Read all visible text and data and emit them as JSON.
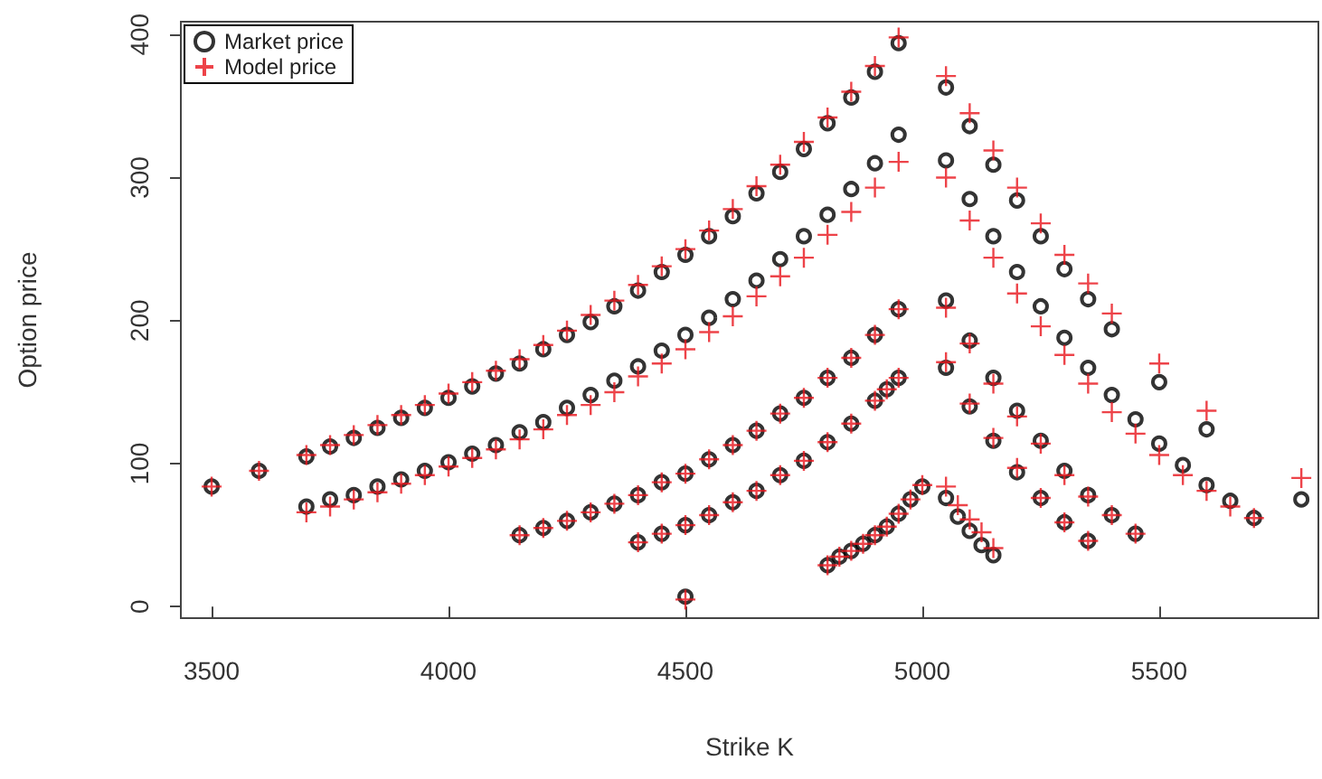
{
  "chart_data": {
    "type": "scatter",
    "xlabel": "Strike K",
    "ylabel": "Option price",
    "x": [
      3500,
      3600,
      3700,
      3750,
      3800,
      3850,
      3900,
      3950,
      4000,
      4050,
      4100,
      4150,
      4200,
      4250,
      4300,
      4350,
      4400,
      4450,
      4500,
      4550,
      4600,
      4650,
      4700,
      4750,
      4800,
      4850,
      4900,
      4950,
      3700,
      3750,
      3800,
      3850,
      3900,
      3950,
      4000,
      4050,
      4100,
      4150,
      4200,
      4250,
      4300,
      4350,
      4400,
      4450,
      4500,
      4550,
      4600,
      4650,
      4700,
      4750,
      4800,
      4850,
      4900,
      4950,
      4150,
      4200,
      4250,
      4300,
      4350,
      4400,
      4450,
      4500,
      4550,
      4600,
      4650,
      4700,
      4750,
      4800,
      4850,
      4900,
      4950,
      4400,
      4450,
      4500,
      4550,
      4600,
      4650,
      4700,
      4750,
      4800,
      4850,
      4900,
      4925,
      4950,
      4500,
      4800,
      4825,
      4850,
      4875,
      4900,
      4925,
      4950,
      4975,
      5000,
      5050,
      5100,
      5150,
      5200,
      5250,
      5300,
      5350,
      5400,
      5500,
      5600,
      5800,
      5050,
      5100,
      5150,
      5200,
      5250,
      5300,
      5350,
      5400,
      5450,
      5500,
      5550,
      5600,
      5650,
      5700,
      5050,
      5100,
      5150,
      5200,
      5250,
      5300,
      5350,
      5400,
      5450,
      5050,
      5100,
      5150,
      5200,
      5250,
      5300,
      5350,
      5050,
      5075,
      5100,
      5125,
      5150
    ],
    "series": [
      {
        "name": "Market price",
        "color": "#000000",
        "marker": "circle",
        "values": [
          84,
          95,
          105,
          112,
          118,
          125,
          132,
          139,
          146,
          154,
          163,
          170,
          180,
          190,
          199,
          210,
          221,
          234,
          246,
          259,
          273,
          289,
          304,
          320,
          338,
          356,
          374,
          394,
          70,
          75,
          78,
          84,
          89,
          95,
          101,
          107,
          113,
          122,
          129,
          139,
          148,
          158,
          168,
          179,
          190,
          202,
          215,
          228,
          243,
          259,
          274,
          292,
          310,
          330,
          50,
          55,
          60,
          66,
          72,
          78,
          87,
          93,
          103,
          113,
          123,
          135,
          146,
          160,
          174,
          190,
          208,
          45,
          51,
          57,
          64,
          73,
          81,
          92,
          102,
          115,
          128,
          144,
          152,
          160,
          7,
          29,
          35,
          39,
          44,
          50,
          56,
          65,
          75,
          84,
          363,
          336,
          309,
          284,
          259,
          236,
          215,
          194,
          157,
          124,
          75,
          312,
          285,
          259,
          234,
          210,
          188,
          167,
          148,
          131,
          114,
          99,
          85,
          74,
          62,
          214,
          186,
          160,
          137,
          116,
          95,
          78,
          64,
          51,
          167,
          140,
          116,
          94,
          76,
          59,
          46,
          76,
          63,
          53,
          43,
          36
        ]
      },
      {
        "name": "Model price",
        "color": "#e8141c",
        "marker": "cross",
        "values": [
          84,
          95,
          106,
          113,
          120,
          127,
          134,
          141,
          149,
          157,
          165,
          173,
          183,
          193,
          204,
          214,
          225,
          238,
          250,
          263,
          278,
          294,
          309,
          325,
          342,
          360,
          378,
          398,
          66,
          70,
          75,
          80,
          86,
          92,
          98,
          104,
          110,
          117,
          124,
          134,
          141,
          150,
          161,
          170,
          180,
          192,
          203,
          217,
          231,
          244,
          260,
          276,
          293,
          311,
          50,
          55,
          60,
          66,
          72,
          78,
          87,
          93,
          103,
          113,
          123,
          135,
          146,
          160,
          174,
          190,
          208,
          45,
          51,
          57,
          64,
          73,
          81,
          92,
          102,
          115,
          128,
          144,
          152,
          160,
          5,
          29,
          35,
          39,
          44,
          50,
          56,
          65,
          75,
          85,
          371,
          345,
          319,
          293,
          268,
          246,
          226,
          205,
          170,
          137,
          90,
          300,
          270,
          244,
          219,
          196,
          176,
          156,
          136,
          121,
          106,
          92,
          81,
          70,
          62,
          209,
          184,
          156,
          133,
          114,
          92,
          77,
          64,
          51,
          171,
          142,
          118,
          97,
          76,
          59,
          46,
          84,
          71,
          61,
          52,
          41
        ]
      }
    ],
    "xlim": [
      3435,
      5836
    ],
    "ylim": [
      -8,
      409
    ],
    "xticks": [
      3500,
      4000,
      4500,
      5000,
      5500
    ],
    "yticks": [
      0,
      100,
      200,
      300,
      400
    ],
    "legend": "top left"
  }
}
